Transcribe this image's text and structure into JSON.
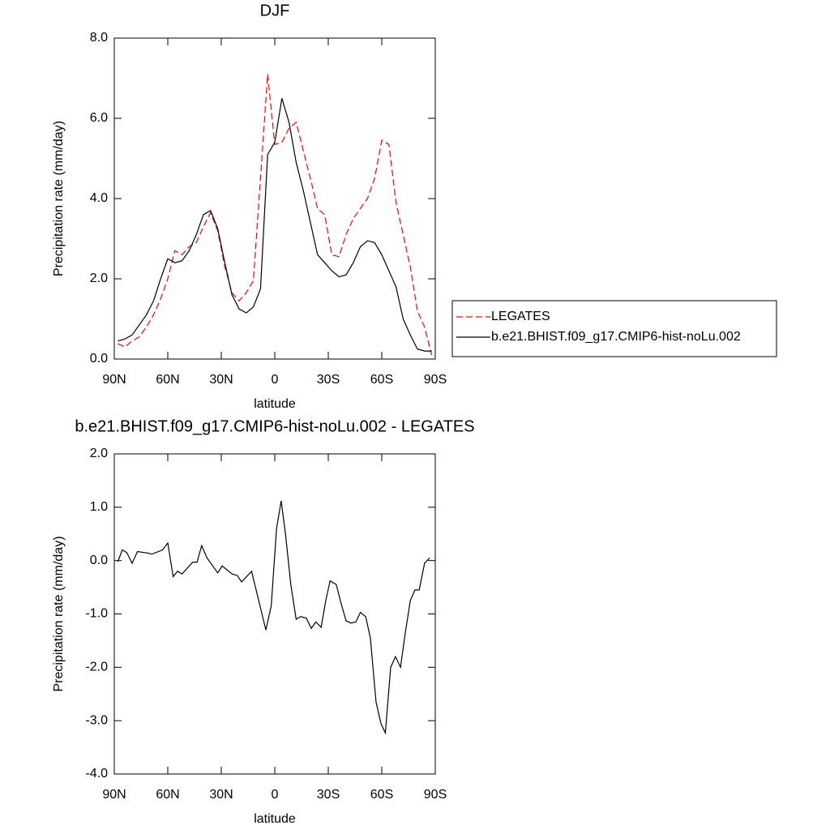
{
  "chart_data": [
    {
      "type": "line",
      "title": "DJF",
      "xlabel": "latitude",
      "ylabel": "Precipitation rate (mm/day)",
      "xlim": [
        90,
        -90
      ],
      "xticks": [
        {
          "value": 90,
          "label": "90N"
        },
        {
          "value": 60,
          "label": "60N"
        },
        {
          "value": 30,
          "label": "30N"
        },
        0,
        {
          "value": -30,
          "label": "30S"
        },
        {
          "value": -60,
          "label": "60S"
        },
        {
          "value": -90,
          "label": "90S"
        }
      ],
      "ylim": [
        0,
        8
      ],
      "yticks": [
        {
          "value": 0,
          "label": "0.0"
        },
        {
          "value": 2,
          "label": "2.0"
        },
        {
          "value": 4,
          "label": "4.0"
        },
        {
          "value": 6,
          "label": "6.0"
        },
        {
          "value": 8,
          "label": "8.0"
        }
      ],
      "legend": "right",
      "x": [
        88,
        84,
        80,
        76,
        72,
        68,
        64,
        60,
        56,
        52,
        48,
        44,
        40,
        36,
        32,
        28,
        24,
        20,
        16,
        12,
        8,
        4,
        0,
        -4,
        -8,
        -12,
        -16,
        -20,
        -24,
        -28,
        -32,
        -36,
        -40,
        -44,
        -48,
        -52,
        -56,
        -60,
        -64,
        -68,
        -72,
        -76,
        -80,
        -84,
        -88
      ],
      "series": [
        {
          "name": "LEGATES",
          "color": "#ff0000",
          "style": "dashed",
          "values": [
            0.38,
            0.3,
            0.45,
            0.55,
            0.8,
            1.1,
            1.5,
            2.0,
            2.7,
            2.6,
            2.8,
            2.9,
            3.3,
            3.65,
            3.2,
            2.3,
            1.65,
            1.45,
            1.65,
            1.95,
            4.5,
            7.1,
            5.35,
            5.4,
            5.75,
            5.9,
            5.2,
            4.5,
            3.75,
            3.6,
            2.6,
            2.55,
            3.1,
            3.5,
            3.75,
            4.0,
            4.5,
            5.45,
            5.35,
            3.9,
            3.1,
            2.3,
            1.2,
            0.8,
            0.1
          ]
        },
        {
          "name": "b.e21.BHIST.f09_g17.CMIP6-hist-noLu.002",
          "color": "#000000",
          "style": "solid",
          "values": [
            0.45,
            0.5,
            0.6,
            0.85,
            1.1,
            1.45,
            2.0,
            2.5,
            2.4,
            2.45,
            2.7,
            3.1,
            3.6,
            3.7,
            3.25,
            2.4,
            1.6,
            1.25,
            1.15,
            1.3,
            1.75,
            5.1,
            5.4,
            6.5,
            5.9,
            4.9,
            4.2,
            3.4,
            2.6,
            2.4,
            2.2,
            2.05,
            2.1,
            2.4,
            2.8,
            2.95,
            2.9,
            2.6,
            2.2,
            1.8,
            1.0,
            0.6,
            0.25,
            0.2,
            0.2
          ]
        }
      ]
    },
    {
      "type": "line",
      "title": "b.e21.BHIST.f09_g17.CMIP6-hist-noLu.002 - LEGATES",
      "xlabel": "latitude",
      "ylabel": "Precipitation rate (mm/day)",
      "xlim": [
        90,
        -90
      ],
      "xticks": [
        {
          "value": 90,
          "label": "90N"
        },
        {
          "value": 60,
          "label": "60N"
        },
        {
          "value": 30,
          "label": "30N"
        },
        0,
        {
          "value": -30,
          "label": "30S"
        },
        {
          "value": -60,
          "label": "60S"
        },
        {
          "value": -90,
          "label": "90S"
        }
      ],
      "ylim": [
        -4,
        2
      ],
      "yticks": [
        {
          "value": -4,
          "label": "-4.0"
        },
        {
          "value": -3,
          "label": "-3.0"
        },
        {
          "value": -2,
          "label": "-2.0"
        },
        {
          "value": -1,
          "label": "-1.0"
        },
        {
          "value": 0,
          "label": "0.0"
        },
        {
          "value": 1,
          "label": "1.0"
        },
        {
          "value": 2,
          "label": "2.0"
        }
      ],
      "x": [
        88,
        85.5,
        83,
        80,
        77,
        71,
        69,
        63,
        60,
        57,
        54.5,
        52,
        46,
        43.6,
        41,
        38,
        32,
        29.5,
        24,
        21,
        18.6,
        13,
        5,
        2,
        -1,
        -3.6,
        -6,
        -9,
        -12,
        -14.5,
        -17.7,
        -20.5,
        -23,
        -26,
        -28.6,
        -31,
        -34.5,
        -37,
        -40,
        -42.7,
        -45.5,
        -48,
        -51,
        -53.6,
        -56.8,
        -59.5,
        -62,
        -65,
        -67.7,
        -70.5,
        -73,
        -76,
        -78.6,
        -81,
        -84,
        -86.8
      ],
      "series": [
        {
          "color": "#000000",
          "style": "solid",
          "values": [
            -0.02,
            0.2,
            0.15,
            -0.05,
            0.17,
            0.14,
            0.12,
            0.2,
            0.33,
            -0.3,
            -0.2,
            -0.25,
            -0.03,
            -0.03,
            0.28,
            0.05,
            -0.23,
            -0.1,
            -0.25,
            -0.28,
            -0.4,
            -0.2,
            -1.3,
            -0.85,
            0.6,
            1.12,
            0.5,
            -0.45,
            -1.1,
            -1.05,
            -1.08,
            -1.27,
            -1.15,
            -1.25,
            -0.75,
            -0.38,
            -0.45,
            -0.78,
            -1.13,
            -1.17,
            -1.15,
            -0.97,
            -1.05,
            -1.45,
            -2.65,
            -3.05,
            -3.23,
            -2.0,
            -1.8,
            -2.0,
            -1.4,
            -0.75,
            -0.55,
            -0.55,
            -0.05,
            0.05
          ]
        }
      ]
    }
  ]
}
